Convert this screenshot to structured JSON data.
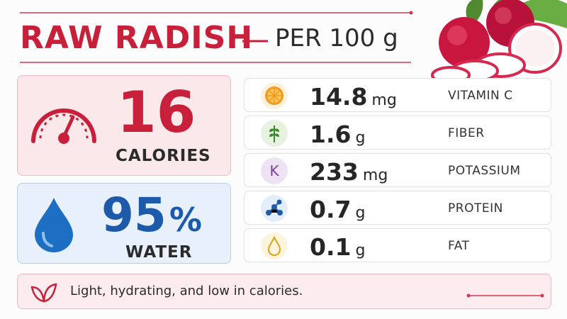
{
  "header": {
    "title": "RAW RADISH",
    "subtitle": "PER 100 g"
  },
  "calories": {
    "value": 16,
    "label": "CALORIES"
  },
  "water": {
    "value": 95,
    "unit": "%",
    "label": "WATER"
  },
  "nutrients": [
    {
      "amount": 14.8,
      "unit": "mg",
      "name": "VITAMIN C"
    },
    {
      "amount": 1.6,
      "unit": "g",
      "name": "FIBER"
    },
    {
      "amount": 233,
      "unit": "mg",
      "name": "POTASSIUM",
      "icon_text": "K"
    },
    {
      "amount": 0.7,
      "unit": "g",
      "name": "PROTEIN"
    },
    {
      "amount": 0.1,
      "unit": "g",
      "name": "FAT"
    }
  ],
  "footer": {
    "text": "Light, hydrating, and low in calories."
  }
}
